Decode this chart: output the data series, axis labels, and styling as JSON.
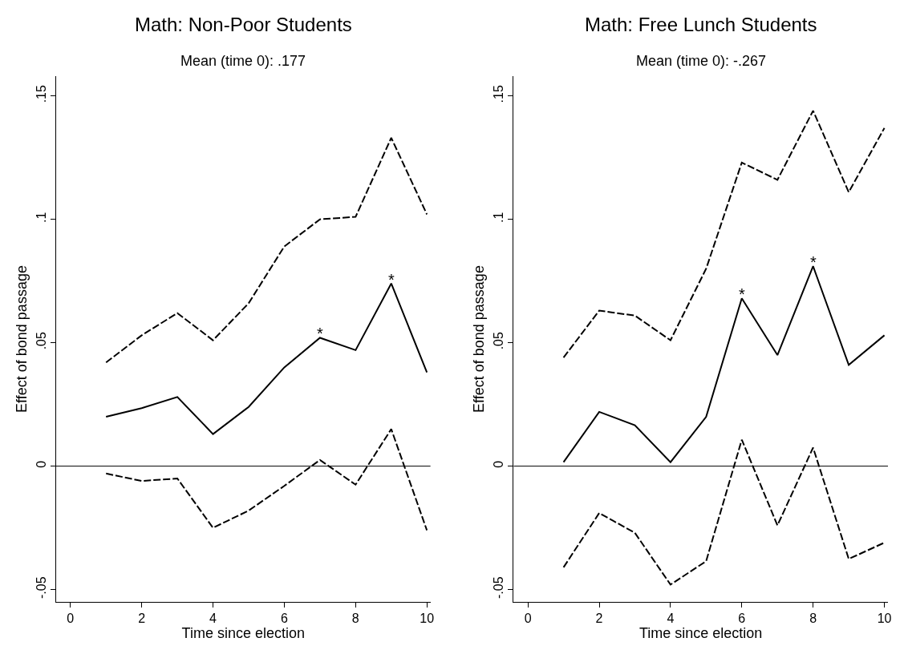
{
  "chart_data": [
    {
      "type": "line",
      "title": "Math: Non-Poor Students",
      "subtitle": "Mean (time 0): .177",
      "xlabel": "Time since election",
      "ylabel": "Effect of bond passage",
      "x": [
        1,
        2,
        3,
        4,
        5,
        6,
        7,
        8,
        9,
        10
      ],
      "series": [
        {
          "color": "#000000",
          "line_style": "dashed",
          "values": [
            0.042,
            0.053,
            0.062,
            0.051,
            0.066,
            0.089,
            0.1,
            0.101,
            0.133,
            0.102
          ]
        },
        {
          "color": "#000000",
          "line_style": "solid",
          "values": [
            0.02,
            0.0235,
            0.028,
            0.013,
            0.024,
            0.04,
            0.052,
            0.047,
            0.074,
            0.038
          ]
        },
        {
          "color": "#000000",
          "line_style": "dashed",
          "values": [
            -0.003,
            -0.006,
            -0.005,
            -0.025,
            -0.018,
            -0.008,
            0.0025,
            -0.0075,
            0.015,
            -0.026
          ]
        }
      ],
      "xlim": [
        -0.4,
        10.1
      ],
      "xticks": [
        0,
        2,
        4,
        6,
        8,
        10
      ],
      "ylim": [
        -0.055,
        0.158
      ],
      "yticks": [
        {
          "value": -0.05,
          "label": "-.05"
        },
        {
          "value": 0,
          "label": "0"
        },
        {
          "value": 0.05,
          "label": ".05"
        },
        {
          "value": 0.1,
          "label": ".1"
        },
        {
          "value": 0.15,
          "label": ".15"
        }
      ],
      "ref_lines": [
        {
          "axis": "y",
          "value": 0,
          "color": "#000000"
        }
      ],
      "annotations": [
        {
          "text": "*",
          "x": 7,
          "y": 0.052
        },
        {
          "text": "*",
          "x": 9,
          "y": 0.074
        }
      ],
      "marker": "none"
    },
    {
      "type": "line",
      "title": "Math: Free Lunch Students",
      "subtitle": "Mean (time 0): -.267",
      "xlabel": "Time since election",
      "ylabel": "Effect of bond passage",
      "x": [
        1,
        2,
        3,
        4,
        5,
        6,
        7,
        8,
        9,
        10
      ],
      "series": [
        {
          "color": "#000000",
          "line_style": "dashed",
          "values": [
            0.044,
            0.063,
            0.061,
            0.051,
            0.08,
            0.123,
            0.116,
            0.144,
            0.111,
            0.137
          ]
        },
        {
          "color": "#000000",
          "line_style": "solid",
          "values": [
            0.0016,
            0.022,
            0.0166,
            0.0016,
            0.02,
            0.068,
            0.045,
            0.081,
            0.041,
            0.053
          ]
        },
        {
          "color": "#000000",
          "line_style": "dashed",
          "values": [
            -0.041,
            -0.019,
            -0.027,
            -0.048,
            -0.0385,
            0.0107,
            -0.024,
            0.0075,
            -0.0376,
            -0.031
          ]
        }
      ],
      "xlim": [
        -0.4,
        10.1
      ],
      "xticks": [
        0,
        2,
        4,
        6,
        8,
        10
      ],
      "ylim": [
        -0.055,
        0.158
      ],
      "yticks": [
        {
          "value": -0.05,
          "label": "-.05"
        },
        {
          "value": 0,
          "label": "0"
        },
        {
          "value": 0.05,
          "label": ".05"
        },
        {
          "value": 0.1,
          "label": ".1"
        },
        {
          "value": 0.15,
          "label": ".15"
        }
      ],
      "ref_lines": [
        {
          "axis": "y",
          "value": 0,
          "color": "#000000"
        }
      ],
      "annotations": [
        {
          "text": "*",
          "x": 6,
          "y": 0.068
        },
        {
          "text": "*",
          "x": 8,
          "y": 0.081
        }
      ],
      "marker": "none"
    }
  ]
}
